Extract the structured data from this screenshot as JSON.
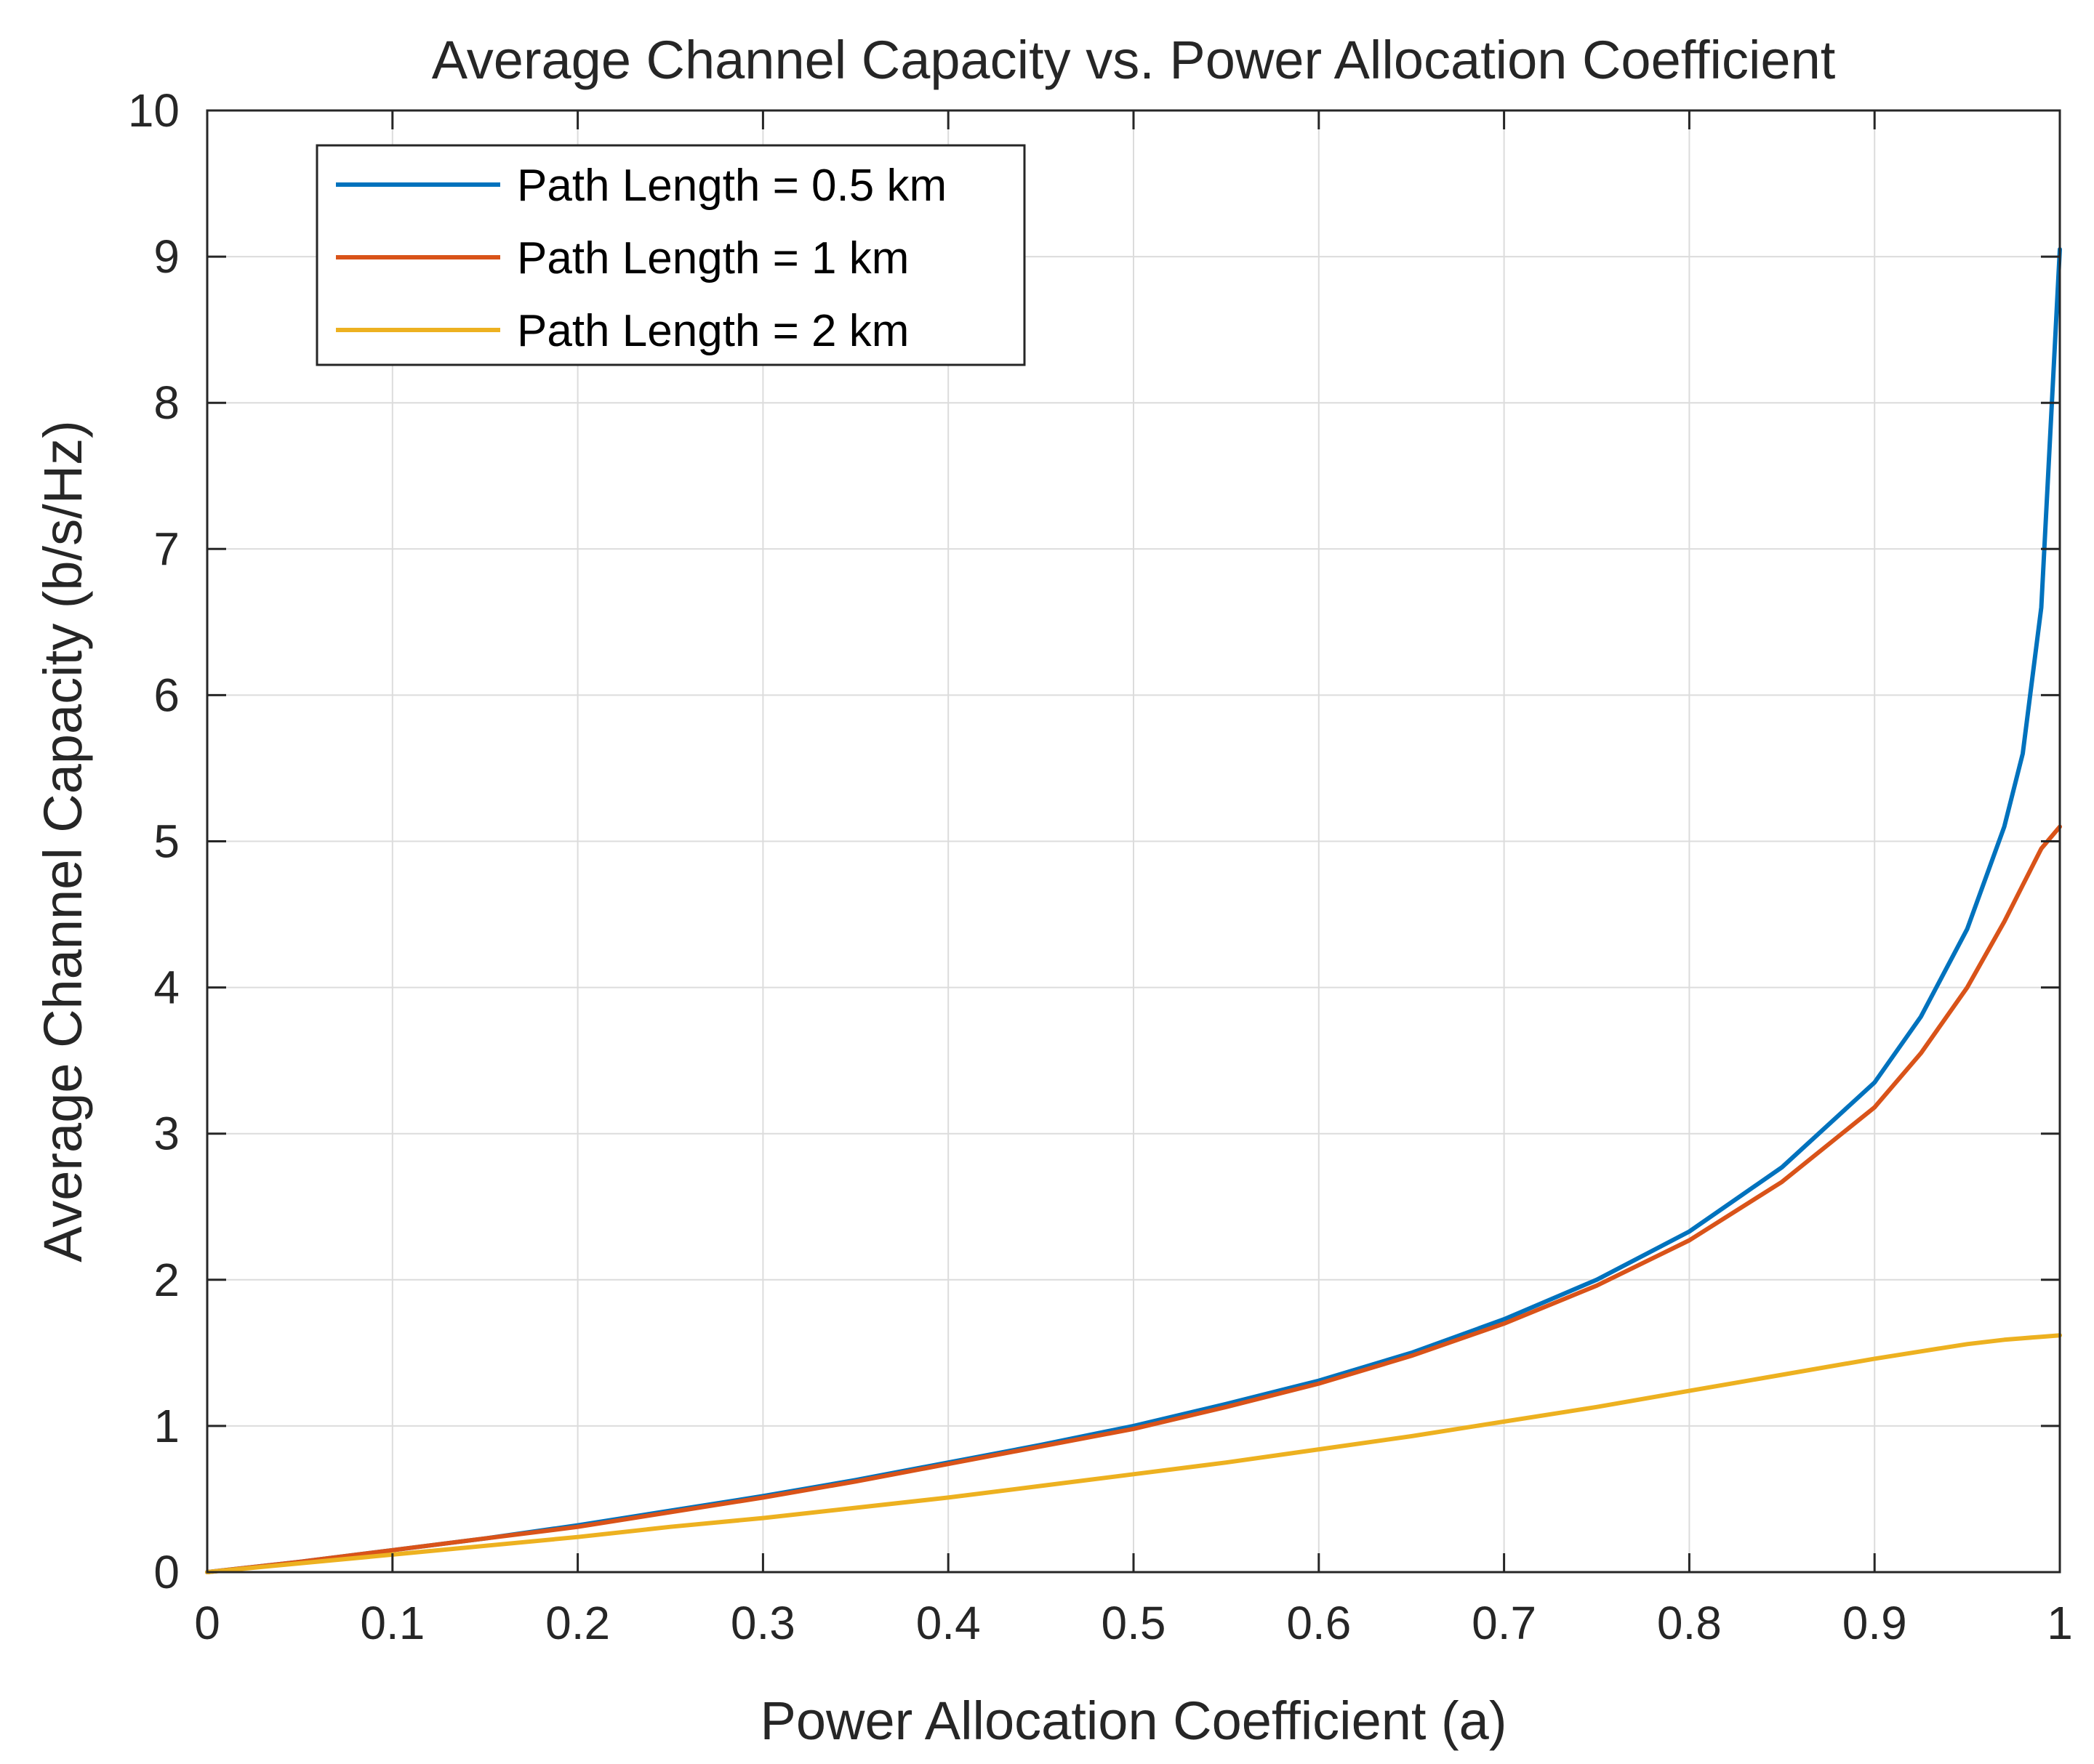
{
  "chart_data": {
    "type": "line",
    "title": "Average Channel Capacity vs. Power Allocation Coefficient",
    "xlabel": "Power Allocation Coefficient (a)",
    "ylabel": "Average Channel Capacity (b/s/Hz)",
    "xlim": [
      0,
      1
    ],
    "ylim": [
      0,
      10
    ],
    "xticks": [
      0,
      0.1,
      0.2,
      0.3,
      0.4,
      0.5,
      0.6,
      0.7,
      0.8,
      0.9,
      1
    ],
    "xtick_labels": [
      "0",
      "0.1",
      "0.2",
      "0.3",
      "0.4",
      "0.5",
      "0.6",
      "0.7",
      "0.8",
      "0.9",
      "1"
    ],
    "yticks": [
      0,
      1,
      2,
      3,
      4,
      5,
      6,
      7,
      8,
      9,
      10
    ],
    "ytick_labels": [
      "0",
      "1",
      "2",
      "3",
      "4",
      "5",
      "6",
      "7",
      "8",
      "9",
      "10"
    ],
    "grid": true,
    "legend_position": "top-left",
    "x": [
      0,
      0.05,
      0.1,
      0.15,
      0.2,
      0.25,
      0.3,
      0.35,
      0.4,
      0.45,
      0.5,
      0.55,
      0.6,
      0.65,
      0.7,
      0.75,
      0.8,
      0.85,
      0.9,
      0.925,
      0.95,
      0.97,
      0.98,
      0.99,
      1.0
    ],
    "series": [
      {
        "name": "Path Length = 0.5 km",
        "color": "#0072BD",
        "values": [
          0,
          0.07,
          0.15,
          0.23,
          0.32,
          0.42,
          0.52,
          0.63,
          0.75,
          0.87,
          1.0,
          1.15,
          1.31,
          1.5,
          1.73,
          2.0,
          2.33,
          2.77,
          3.35,
          3.8,
          4.4,
          5.1,
          5.6,
          6.6,
          9.05
        ]
      },
      {
        "name": "Path Length = 1 km",
        "color": "#D95319",
        "values": [
          0,
          0.07,
          0.15,
          0.23,
          0.31,
          0.41,
          0.51,
          0.62,
          0.74,
          0.86,
          0.98,
          1.13,
          1.29,
          1.48,
          1.7,
          1.96,
          2.27,
          2.67,
          3.18,
          3.55,
          4.0,
          4.45,
          4.7,
          4.95,
          5.1
        ]
      },
      {
        "name": "Path Length = 2 km",
        "color": "#EDB120",
        "values": [
          0,
          0.06,
          0.12,
          0.18,
          0.24,
          0.31,
          0.37,
          0.44,
          0.51,
          0.59,
          0.67,
          0.75,
          0.84,
          0.93,
          1.03,
          1.13,
          1.24,
          1.35,
          1.46,
          1.51,
          1.56,
          1.59,
          1.6,
          1.61,
          1.62
        ]
      }
    ]
  }
}
